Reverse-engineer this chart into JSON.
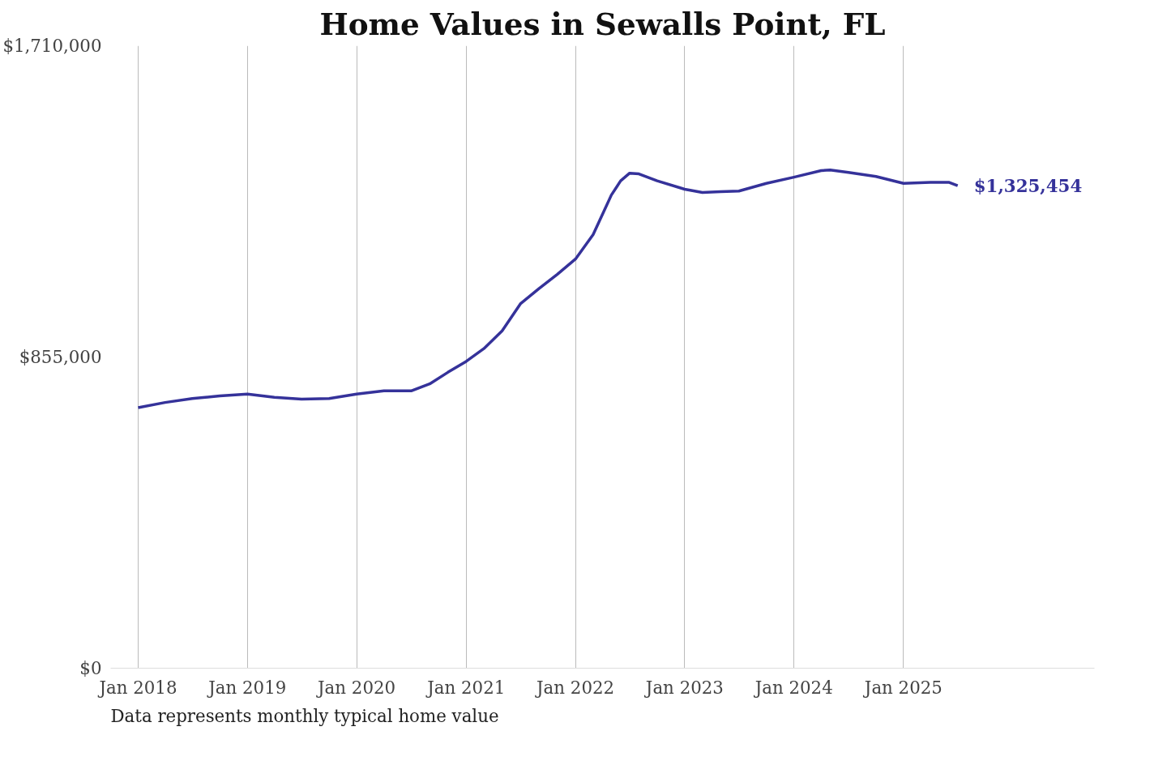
{
  "chart_data": {
    "type": "line",
    "title": "Home Values in Sewalls Point, FL",
    "annotations": [
      "Data represents monthly typical home value"
    ],
    "x": [
      "2018-01",
      "2018-04",
      "2018-07",
      "2018-10",
      "2019-01",
      "2019-04",
      "2019-07",
      "2019-10",
      "2020-01",
      "2020-04",
      "2020-07",
      "2020-09",
      "2020-11",
      "2021-01",
      "2021-03",
      "2021-05",
      "2021-07",
      "2021-09",
      "2021-11",
      "2022-01",
      "2022-03",
      "2022-05",
      "2022-06",
      "2022-07",
      "2022-08",
      "2022-10",
      "2023-01",
      "2023-03",
      "2023-05",
      "2023-07",
      "2023-10",
      "2024-01",
      "2024-04",
      "2024-05",
      "2024-07",
      "2024-10",
      "2025-01",
      "2025-04",
      "2025-06",
      "2025-07"
    ],
    "series": [
      {
        "color": "#35329a",
        "values": [
          716000,
          730000,
          741000,
          748000,
          753000,
          744000,
          739000,
          741000,
          753000,
          762000,
          762000,
          781000,
          813000,
          843000,
          878000,
          927000,
          1001000,
          1043000,
          1082000,
          1124000,
          1191000,
          1300000,
          1339000,
          1360000,
          1358000,
          1339000,
          1316000,
          1307000,
          1309000,
          1311000,
          1332000,
          1349000,
          1367000,
          1369000,
          1362000,
          1351000,
          1332000,
          1335000,
          1335000,
          1325454
        ],
        "value_labels": [
          null,
          null,
          null,
          null,
          null,
          null,
          null,
          null,
          null,
          null,
          null,
          null,
          null,
          null,
          null,
          null,
          null,
          null,
          null,
          null,
          null,
          null,
          null,
          null,
          null,
          null,
          null,
          null,
          null,
          null,
          null,
          null,
          null,
          null,
          null,
          null,
          null,
          null,
          null,
          "$1,325,454"
        ]
      }
    ],
    "xticks": [
      {
        "value": "2018-01",
        "label": "Jan 2018"
      },
      {
        "value": "2019-01",
        "label": "Jan 2019"
      },
      {
        "value": "2020-01",
        "label": "Jan 2020"
      },
      {
        "value": "2021-01",
        "label": "Jan 2021"
      },
      {
        "value": "2022-01",
        "label": "Jan 2022"
      },
      {
        "value": "2023-01",
        "label": "Jan 2023"
      },
      {
        "value": "2024-01",
        "label": "Jan 2024"
      },
      {
        "value": "2025-01",
        "label": "Jan 2025"
      }
    ],
    "xlim": [
      "2017-10-01",
      "2026-10-01"
    ],
    "ylim": [
      0,
      1710000
    ],
    "yticks": [
      {
        "value": 0,
        "label": "$0"
      },
      {
        "value": 855000,
        "label": "$855,000"
      },
      {
        "value": 1710000,
        "label": "$1,710,000"
      }
    ],
    "grid": "x",
    "line_style": "solid"
  }
}
